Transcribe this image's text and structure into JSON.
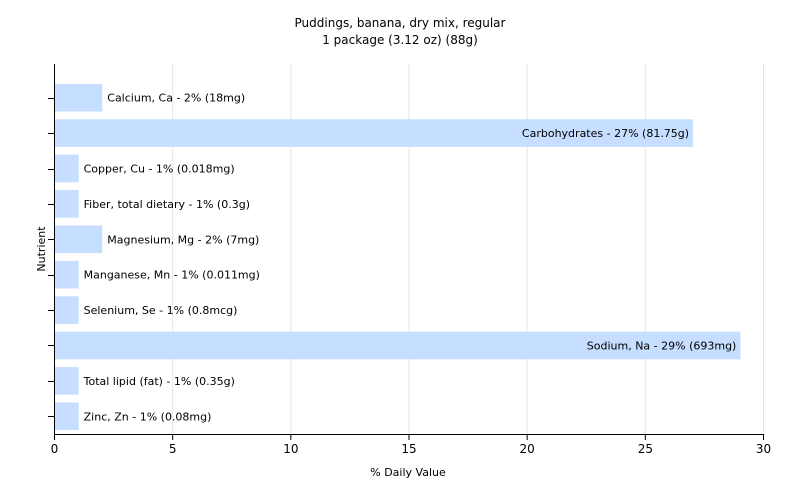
{
  "chart_data": {
    "type": "bar",
    "orientation": "horizontal",
    "title": "Puddings, banana, dry mix, regular",
    "subtitle": "1 package (3.12 oz) (88g)",
    "xlabel": "% Daily Value",
    "ylabel": "Nutrient",
    "xlim": [
      0,
      30
    ],
    "xticks": [
      0,
      5,
      10,
      15,
      20,
      25,
      30
    ],
    "grid": true,
    "bar_color": "#c6deff",
    "categories": [
      "Calcium, Ca",
      "Carbohydrates",
      "Copper, Cu",
      "Fiber, total dietary",
      "Magnesium, Mg",
      "Manganese, Mn",
      "Selenium, Se",
      "Sodium, Na",
      "Total lipid (fat)",
      "Zinc, Zn"
    ],
    "values": [
      2,
      27,
      1,
      1,
      2,
      1,
      1,
      29,
      1,
      1
    ],
    "labels": [
      "Calcium, Ca - 2% (18mg)",
      "Carbohydrates - 27% (81.75g)",
      "Copper, Cu - 1% (0.018mg)",
      "Fiber, total dietary - 1% (0.3g)",
      "Magnesium, Mg - 2% (7mg)",
      "Manganese, Mn - 1% (0.011mg)",
      "Selenium, Se - 1% (0.8mcg)",
      "Sodium, Na - 29% (693mg)",
      "Total lipid (fat) - 1% (0.35g)",
      "Zinc, Zn - 1% (0.08mg)"
    ]
  }
}
